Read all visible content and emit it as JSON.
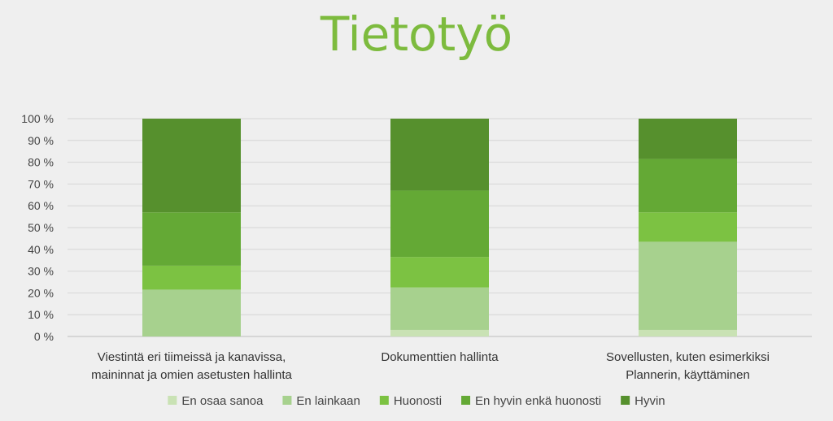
{
  "chart_data": {
    "type": "bar",
    "stacked": true,
    "title": "Tietotyö",
    "categories": [
      [
        "Viestintä eri tiimeissä ja kanavissa,",
        "maininnat ja omien asetusten hallinta"
      ],
      [
        "Dokumenttien hallinta"
      ],
      [
        "Sovellusten, kuten esimerkiksi",
        "Plannerin, käyttäminen"
      ]
    ],
    "series": [
      {
        "name": "En osaa sanoa",
        "color": "#c9e2b4",
        "values": [
          0,
          3,
          3
        ]
      },
      {
        "name": "En lainkaan",
        "color": "#a7d18e",
        "values": [
          21.5,
          19.5,
          40.5
        ]
      },
      {
        "name": "Huonosti",
        "color": "#7cc242",
        "values": [
          11,
          14,
          13.5
        ]
      },
      {
        "name": "En hyvin enkä huonosti",
        "color": "#64a935",
        "values": [
          24.5,
          30.5,
          24.5
        ]
      },
      {
        "name": "Hyvin",
        "color": "#56902d",
        "values": [
          43,
          33,
          18.5
        ]
      }
    ],
    "yticks": [
      "0 %",
      "10 %",
      "20 %",
      "30 %",
      "40 %",
      "50 %",
      "60 %",
      "70 %",
      "80 %",
      "90 %",
      "100 %"
    ],
    "ylim": [
      0,
      100
    ],
    "grid": true,
    "legend": "bottom"
  }
}
